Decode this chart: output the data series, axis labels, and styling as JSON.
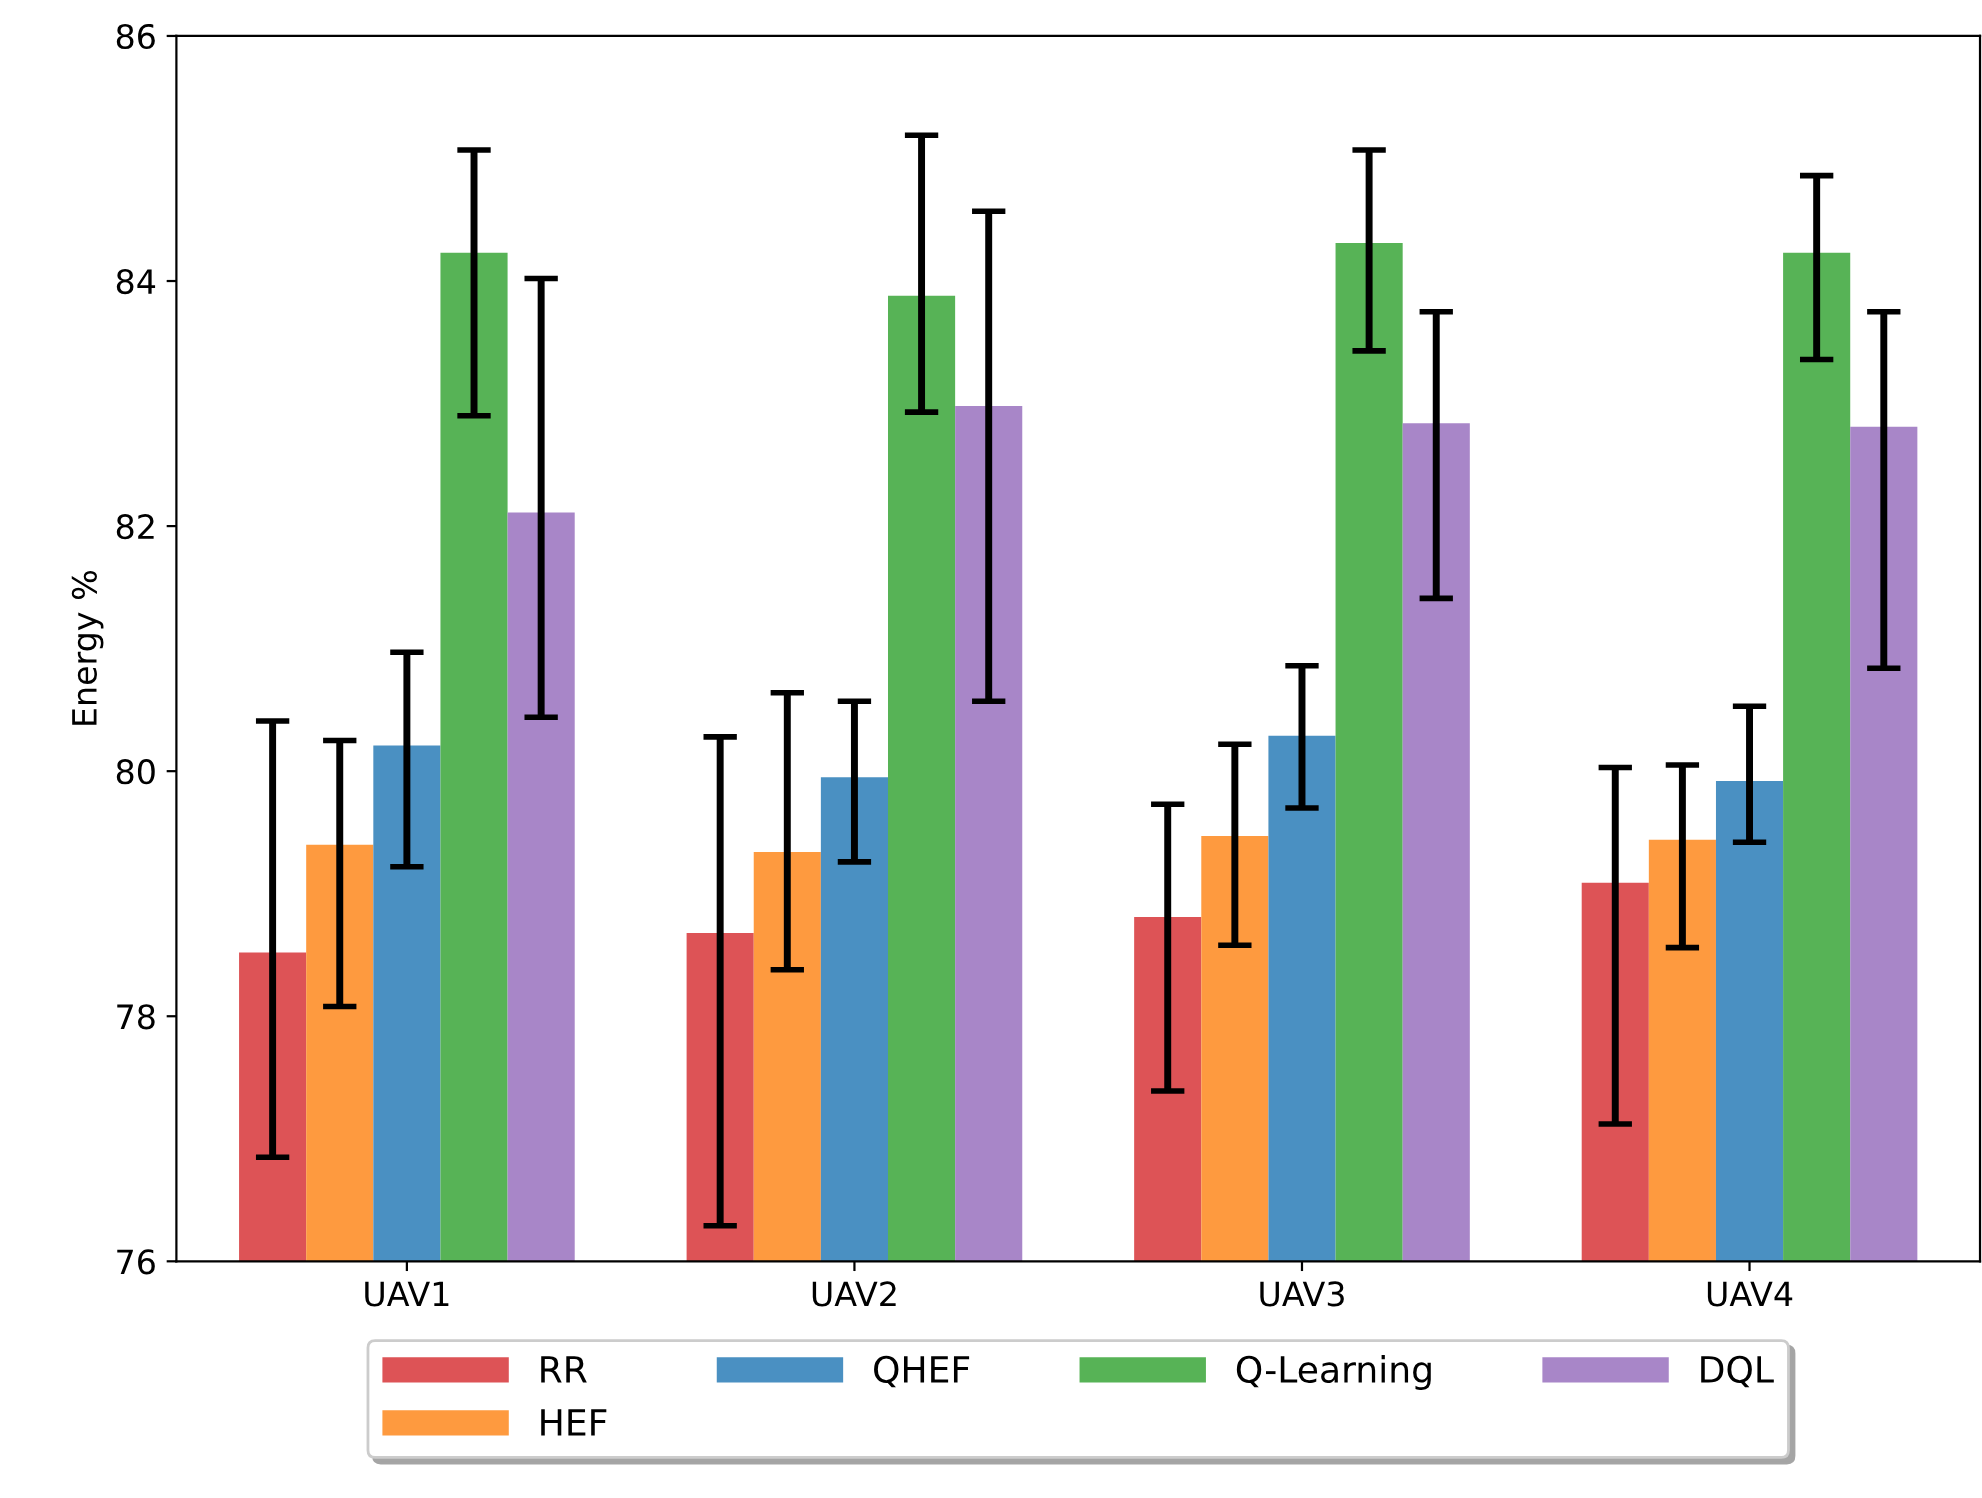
{
  "chart_data": {
    "type": "bar",
    "ylabel": "Energy %",
    "categories": [
      "UAV1",
      "UAV2",
      "UAV3",
      "UAV4"
    ],
    "ylim": [
      76,
      86
    ],
    "yticks": [
      76,
      78,
      80,
      82,
      84,
      86
    ],
    "grid": false,
    "legend": "bottom",
    "series": [
      {
        "name": "RR",
        "color": "#dd5356",
        "values": [
          78.52,
          78.68,
          78.81,
          79.09
        ],
        "errors": [
          [
            76.85,
            80.41
          ],
          [
            76.29,
            80.28
          ],
          [
            77.39,
            79.73
          ],
          [
            77.12,
            80.03
          ]
        ]
      },
      {
        "name": "HEF",
        "color": "#fe9a3f",
        "values": [
          79.4,
          79.34,
          79.47,
          79.44
        ],
        "errors": [
          [
            78.08,
            80.25
          ],
          [
            78.38,
            80.64
          ],
          [
            78.58,
            80.22
          ],
          [
            78.56,
            80.05
          ]
        ]
      },
      {
        "name": "QHEF",
        "color": "#4a90c2",
        "values": [
          80.21,
          79.95,
          80.29,
          79.92
        ],
        "errors": [
          [
            79.22,
            80.97
          ],
          [
            79.26,
            80.57
          ],
          [
            79.7,
            80.86
          ],
          [
            79.42,
            80.53
          ]
        ]
      },
      {
        "name": "Q-Learning",
        "color": "#57b356",
        "values": [
          84.23,
          83.88,
          84.31,
          84.23
        ],
        "errors": [
          [
            82.9,
            85.07
          ],
          [
            82.93,
            85.19
          ],
          [
            83.43,
            85.07
          ],
          [
            83.36,
            84.86
          ]
        ]
      },
      {
        "name": "DQL",
        "color": "#a886c8",
        "values": [
          82.11,
          82.98,
          82.84,
          82.81
        ],
        "errors": [
          [
            80.44,
            84.02
          ],
          [
            80.57,
            84.57
          ],
          [
            81.41,
            83.75
          ],
          [
            80.84,
            83.75
          ]
        ]
      }
    ]
  }
}
